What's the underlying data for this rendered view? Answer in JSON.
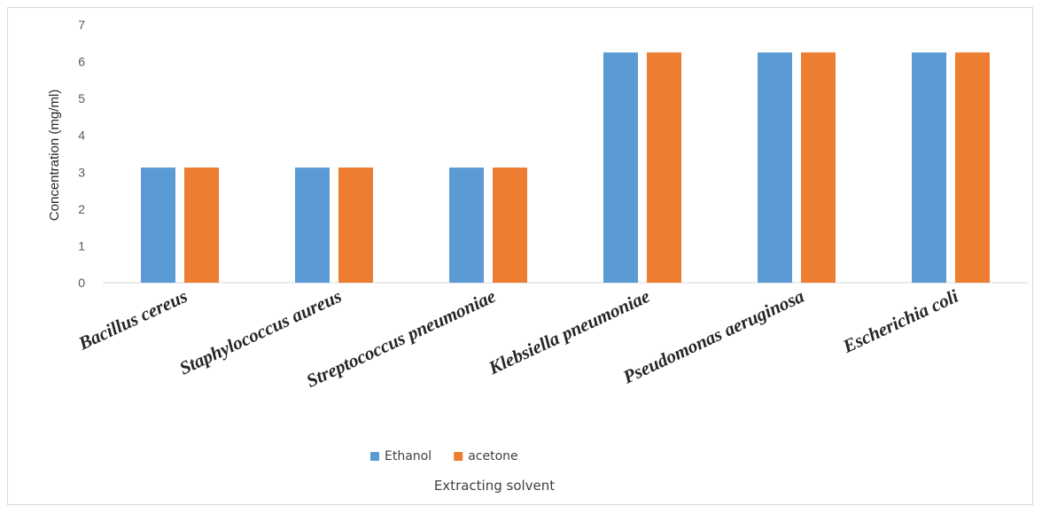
{
  "chart_data": {
    "type": "bar",
    "categories": [
      "Bacillus cereus",
      "Staphylococcus aureus",
      "Streptococcus pneumoniae",
      "Klebsiella pneumoniae",
      "Pseudomonas aeruginosa",
      "Escherichia coli"
    ],
    "series": [
      {
        "name": "Ethanol",
        "color": "#5b9bd5",
        "values": [
          3.125,
          3.125,
          3.125,
          6.25,
          6.25,
          6.25
        ]
      },
      {
        "name": "acetone",
        "color": "#ed7d31",
        "values": [
          3.125,
          3.125,
          3.125,
          6.25,
          6.25,
          6.25
        ]
      }
    ],
    "yticks": [
      "0",
      "1",
      "2",
      "3",
      "4",
      "5",
      "6",
      "7"
    ],
    "ylim": [
      0,
      7
    ],
    "ylabel": "Concentration (mg/ml)",
    "xlabel": "Extracting solvent",
    "legend_position": "bottom",
    "grid": false
  }
}
